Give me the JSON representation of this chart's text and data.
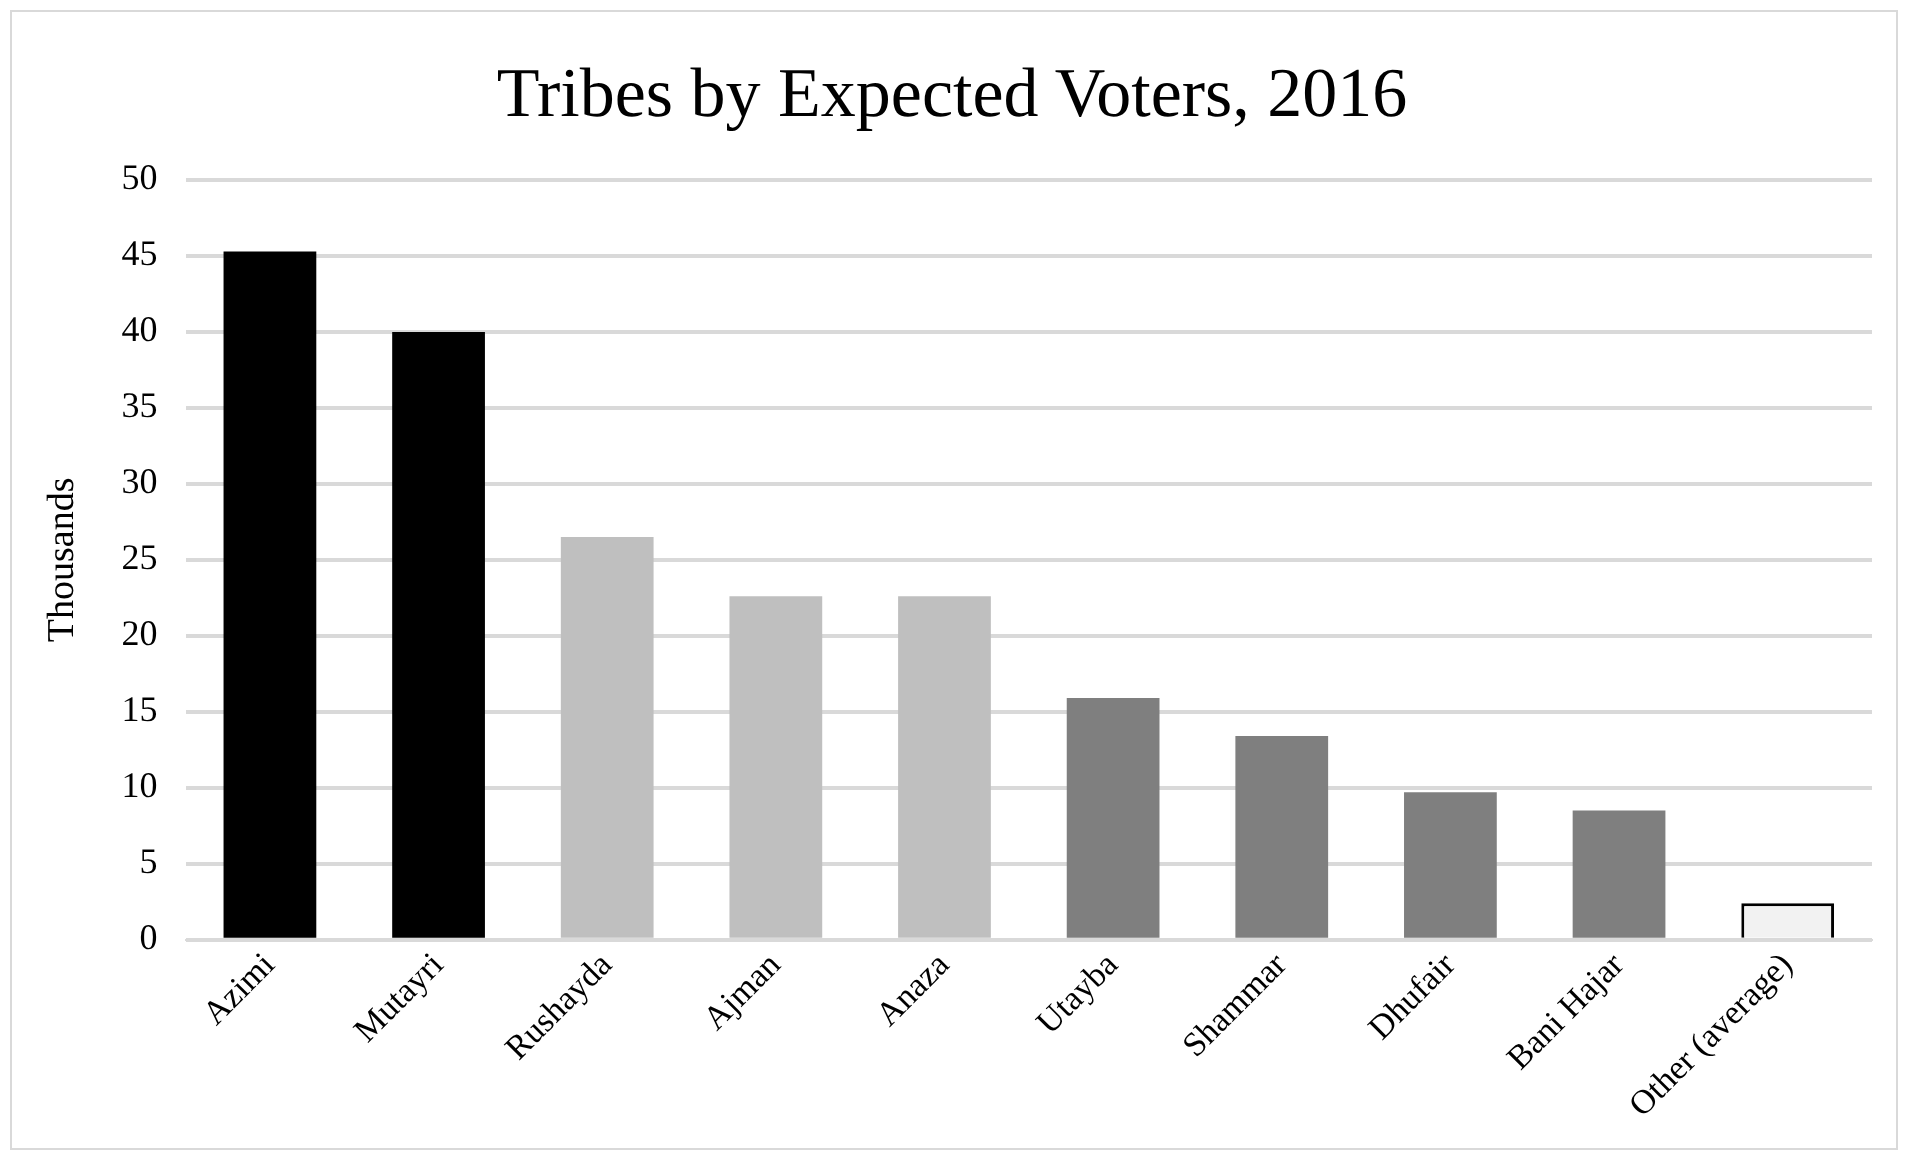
{
  "chart_data": {
    "type": "bar",
    "title": "Tribes by Expected Voters, 2016",
    "ylabel": "Thousands",
    "categories": [
      "Azimi",
      "Mutayri",
      "Rushayda",
      "Ajman",
      "Anaza",
      "Utayba",
      "Shammar",
      "Dhufair",
      "Bani Hajar",
      "Other (average)"
    ],
    "values": [
      45.3,
      40,
      26.5,
      22.6,
      22.6,
      15.9,
      13.4,
      9.7,
      8.5,
      2.4
    ],
    "colors": [
      "#000000",
      "#000000",
      "#bfbfbf",
      "#bfbfbf",
      "#bfbfbf",
      "#7f7f7f",
      "#7f7f7f",
      "#7f7f7f",
      "#7f7f7f",
      "#f2f2f2"
    ],
    "ylim": [
      0,
      50
    ],
    "yticks": [
      0,
      5,
      10,
      15,
      20,
      25,
      30,
      35,
      40,
      45,
      50
    ],
    "grid": "y"
  }
}
